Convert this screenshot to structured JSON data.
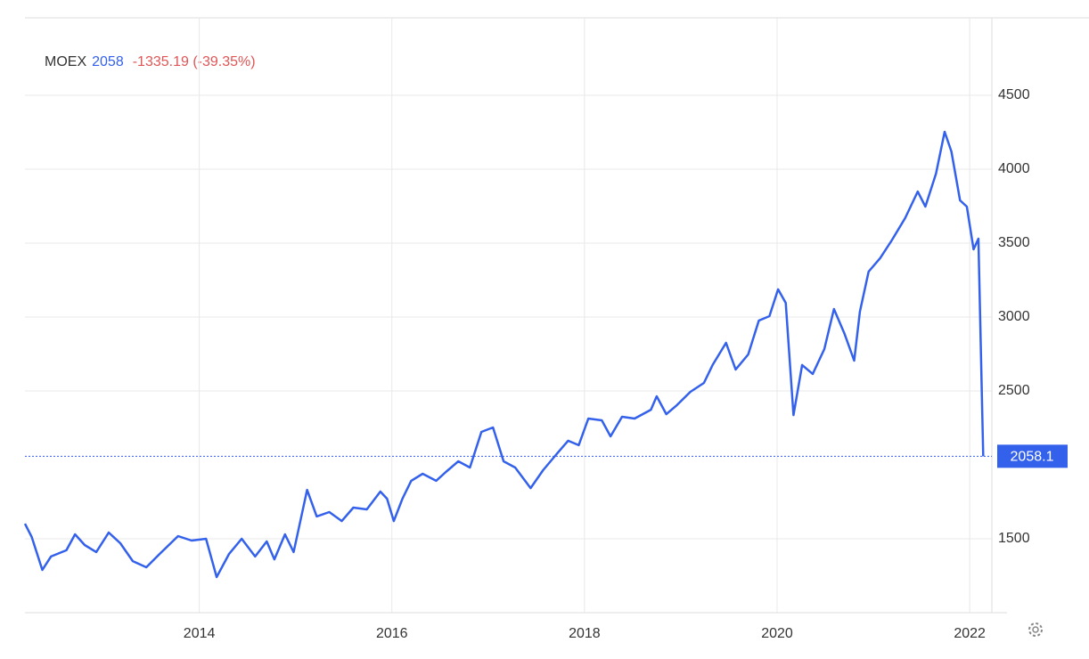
{
  "chart_data": {
    "type": "line",
    "symbol": "MOEX",
    "last": 2058,
    "change": "-1335.19 (-39.35%)",
    "current_value": 2058.1,
    "x": [
      2012.19,
      2012.26,
      2012.37,
      2012.46,
      2012.62,
      2012.71,
      2012.81,
      2012.93,
      2013.06,
      2013.18,
      2013.31,
      2013.45,
      2013.59,
      2013.78,
      2013.92,
      2014.07,
      2014.18,
      2014.31,
      2014.44,
      2014.58,
      2014.7,
      2014.78,
      2014.89,
      2014.98,
      2015.12,
      2015.22,
      2015.35,
      2015.48,
      2015.6,
      2015.74,
      2015.88,
      2015.95,
      2016.02,
      2016.11,
      2016.2,
      2016.32,
      2016.46,
      2016.56,
      2016.69,
      2016.81,
      2016.93,
      2017.05,
      2017.16,
      2017.28,
      2017.44,
      2017.57,
      2017.71,
      2017.83,
      2017.94,
      2018.04,
      2018.18,
      2018.27,
      2018.39,
      2018.52,
      2018.69,
      2018.75,
      2018.85,
      2018.96,
      2019.1,
      2019.24,
      2019.33,
      2019.47,
      2019.57,
      2019.7,
      2019.81,
      2019.92,
      2020.01,
      2020.09,
      2020.17,
      2020.26,
      2020.37,
      2020.49,
      2020.59,
      2020.7,
      2020.8,
      2020.86,
      2020.95,
      2021.07,
      2021.19,
      2021.33,
      2021.46,
      2021.54,
      2021.65,
      2021.74,
      2021.81,
      2021.9,
      2021.97,
      2022.04,
      2022.09,
      2022.14
    ],
    "series": [
      {
        "name": "MOEX",
        "color": "#3461ec",
        "values": [
          1602,
          1512,
          1289,
          1380,
          1422,
          1530,
          1458,
          1410,
          1542,
          1470,
          1349,
          1307,
          1398,
          1518,
          1488,
          1500,
          1241,
          1398,
          1500,
          1380,
          1482,
          1361,
          1530,
          1410,
          1831,
          1651,
          1681,
          1620,
          1711,
          1699,
          1819,
          1771,
          1620,
          1771,
          1892,
          1940,
          1892,
          1952,
          2024,
          1982,
          2223,
          2253,
          2024,
          1982,
          1843,
          1964,
          2072,
          2163,
          2133,
          2313,
          2301,
          2193,
          2325,
          2313,
          2373,
          2464,
          2343,
          2404,
          2494,
          2554,
          2675,
          2825,
          2645,
          2747,
          2976,
          3006,
          3187,
          3096,
          2337,
          2675,
          2615,
          2783,
          3054,
          2886,
          2705,
          3036,
          3307,
          3398,
          3518,
          3669,
          3849,
          3747,
          3970,
          4253,
          4120,
          3789,
          3747,
          3458,
          3530,
          2058.1
        ]
      }
    ],
    "xlim": [
      2012.19,
      2022.23
    ],
    "xticks": [
      2014,
      2016,
      2018,
      2020,
      2022
    ],
    "ylim": [
      1000,
      5024
    ],
    "yticks": [
      1500,
      2500,
      3000,
      3500,
      4000,
      4500
    ],
    "grid": true
  }
}
